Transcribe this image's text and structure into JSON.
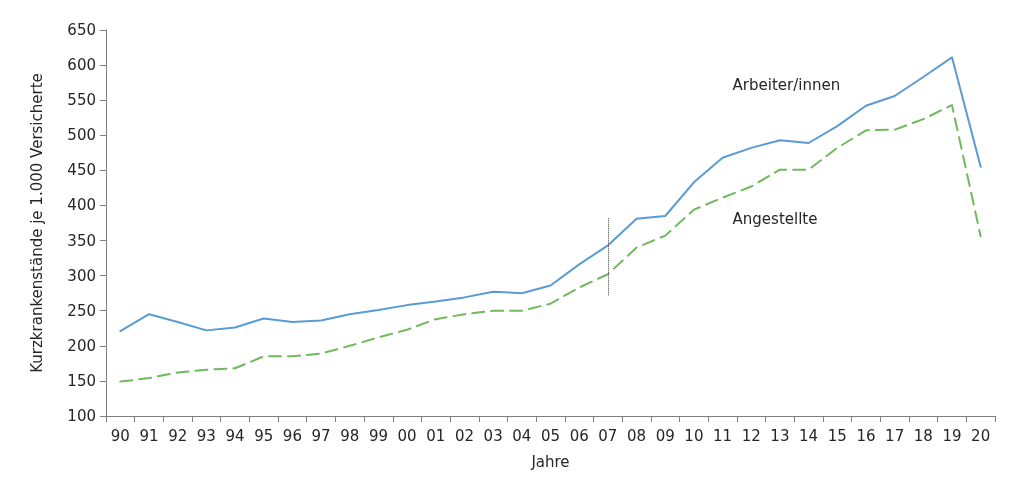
{
  "chart_data": {
    "type": "line",
    "xlabel": "Jahre",
    "ylabel": "Kurzkrankenstände je 1.000 Versicherte",
    "categories": [
      "90",
      "91",
      "92",
      "93",
      "94",
      "95",
      "96",
      "97",
      "98",
      "99",
      "00",
      "01",
      "02",
      "03",
      "04",
      "05",
      "06",
      "07",
      "08",
      "09",
      "10",
      "11",
      "12",
      "13",
      "14",
      "15",
      "16",
      "17",
      "18",
      "19",
      "20"
    ],
    "series": [
      {
        "name": "Arbeiter/innen",
        "color": "#5b9bd5",
        "line_style": "solid",
        "values": [
          221,
          245,
          234,
          222,
          226,
          239,
          234,
          236,
          245,
          251,
          258,
          263,
          269,
          277,
          275,
          286,
          316,
          343,
          381,
          385,
          433,
          468,
          482,
          493,
          489,
          513,
          542,
          556,
          583,
          611,
          455
        ]
      },
      {
        "name": "Angestellte",
        "color": "#70b95f",
        "line_style": "dashed",
        "values": [
          149,
          154,
          162,
          166,
          168,
          185,
          185,
          189,
          200,
          212,
          223,
          238,
          245,
          250,
          250,
          260,
          283,
          302,
          340,
          357,
          394,
          411,
          427,
          451,
          451,
          482,
          507,
          508,
          523,
          543,
          356
        ]
      }
    ],
    "ylim": [
      100,
      650
    ],
    "yticks": [
      100,
      150,
      200,
      250,
      300,
      350,
      400,
      450,
      500,
      550,
      600,
      650
    ],
    "grid": false,
    "legend": false,
    "marker": "none",
    "ref_lines": [
      {
        "axis": "x",
        "value": "07",
        "color": "#404040",
        "line_style": "dotted"
      }
    ]
  }
}
